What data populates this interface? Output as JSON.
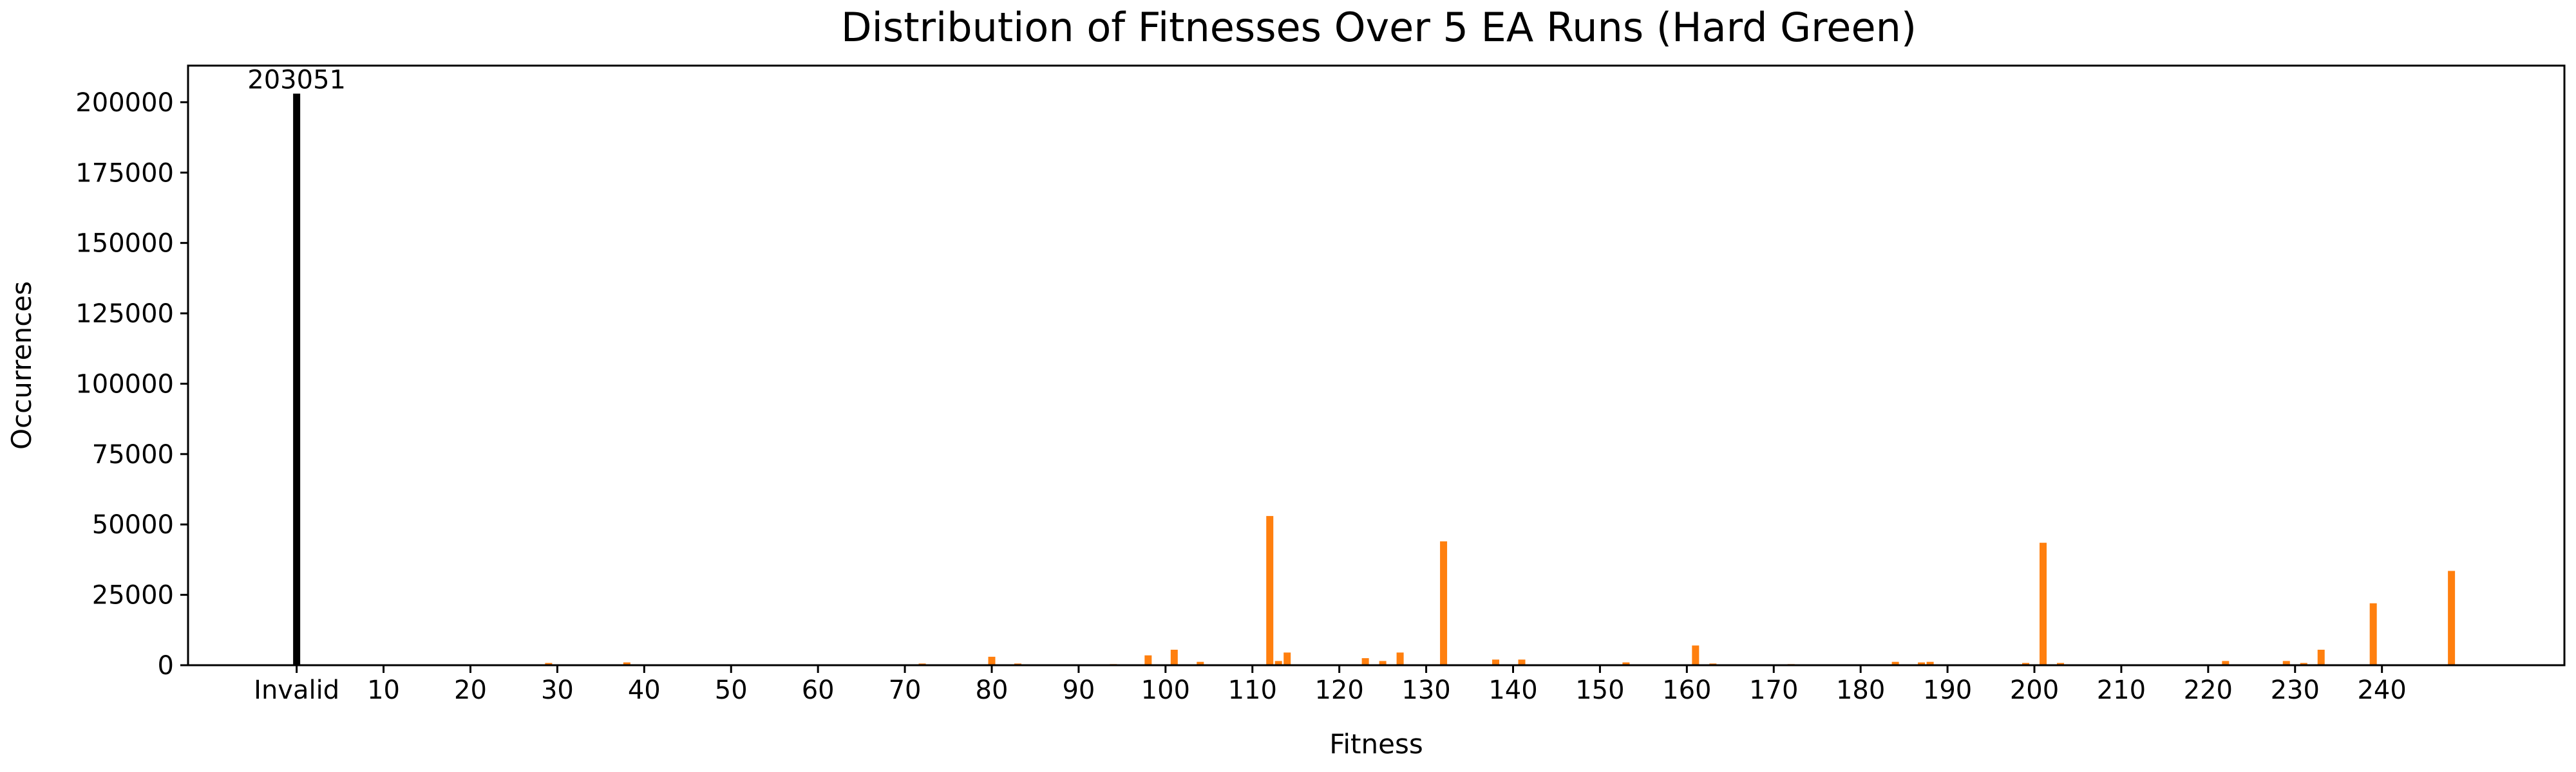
{
  "chart_data": {
    "type": "bar",
    "title": "Distribution of Fitnesses Over 5 EA Runs (Hard Green)",
    "xlabel": "Fitness",
    "ylabel": "Occurrences",
    "xlim": [
      -12.5,
      261
    ],
    "ylim": [
      0,
      213000
    ],
    "grid": false,
    "legend": "none",
    "x_ticks": [
      {
        "value": 0,
        "label": "Invalid"
      },
      {
        "value": 10,
        "label": "10"
      },
      {
        "value": 20,
        "label": "20"
      },
      {
        "value": 30,
        "label": "30"
      },
      {
        "value": 40,
        "label": "40"
      },
      {
        "value": 50,
        "label": "50"
      },
      {
        "value": 60,
        "label": "60"
      },
      {
        "value": 70,
        "label": "70"
      },
      {
        "value": 80,
        "label": "80"
      },
      {
        "value": 90,
        "label": "90"
      },
      {
        "value": 100,
        "label": "100"
      },
      {
        "value": 110,
        "label": "110"
      },
      {
        "value": 120,
        "label": "120"
      },
      {
        "value": 130,
        "label": "130"
      },
      {
        "value": 140,
        "label": "140"
      },
      {
        "value": 150,
        "label": "150"
      },
      {
        "value": 160,
        "label": "160"
      },
      {
        "value": 170,
        "label": "170"
      },
      {
        "value": 180,
        "label": "180"
      },
      {
        "value": 190,
        "label": "190"
      },
      {
        "value": 200,
        "label": "200"
      },
      {
        "value": 210,
        "label": "210"
      },
      {
        "value": 220,
        "label": "220"
      },
      {
        "value": 230,
        "label": "230"
      },
      {
        "value": 240,
        "label": "240"
      }
    ],
    "y_ticks": [
      0,
      25000,
      50000,
      75000,
      100000,
      125000,
      150000,
      175000,
      200000
    ],
    "series": [
      {
        "color": "#000000",
        "points": [
          {
            "x": 0,
            "y": 203051,
            "label": "203051"
          }
        ]
      },
      {
        "color": "#ff7f0e",
        "points": [
          {
            "x": 29,
            "y": 800
          },
          {
            "x": 38,
            "y": 1000
          },
          {
            "x": 72,
            "y": 600
          },
          {
            "x": 80,
            "y": 3000
          },
          {
            "x": 83,
            "y": 600
          },
          {
            "x": 94,
            "y": 400
          },
          {
            "x": 98,
            "y": 3500
          },
          {
            "x": 101,
            "y": 5500
          },
          {
            "x": 104,
            "y": 1200
          },
          {
            "x": 112,
            "y": 53000
          },
          {
            "x": 113,
            "y": 1500
          },
          {
            "x": 114,
            "y": 4500
          },
          {
            "x": 123,
            "y": 2500
          },
          {
            "x": 125,
            "y": 1500
          },
          {
            "x": 127,
            "y": 4500
          },
          {
            "x": 132,
            "y": 44000
          },
          {
            "x": 138,
            "y": 2000
          },
          {
            "x": 141,
            "y": 2000
          },
          {
            "x": 153,
            "y": 1000
          },
          {
            "x": 161,
            "y": 7000
          },
          {
            "x": 163,
            "y": 600
          },
          {
            "x": 172,
            "y": 400
          },
          {
            "x": 184,
            "y": 1200
          },
          {
            "x": 187,
            "y": 1000
          },
          {
            "x": 188,
            "y": 1200
          },
          {
            "x": 199,
            "y": 800
          },
          {
            "x": 201,
            "y": 43500
          },
          {
            "x": 203,
            "y": 800
          },
          {
            "x": 222,
            "y": 1500
          },
          {
            "x": 229,
            "y": 1500
          },
          {
            "x": 231,
            "y": 800
          },
          {
            "x": 233,
            "y": 5500
          },
          {
            "x": 239,
            "y": 22000
          },
          {
            "x": 248,
            "y": 33500
          }
        ]
      }
    ]
  }
}
